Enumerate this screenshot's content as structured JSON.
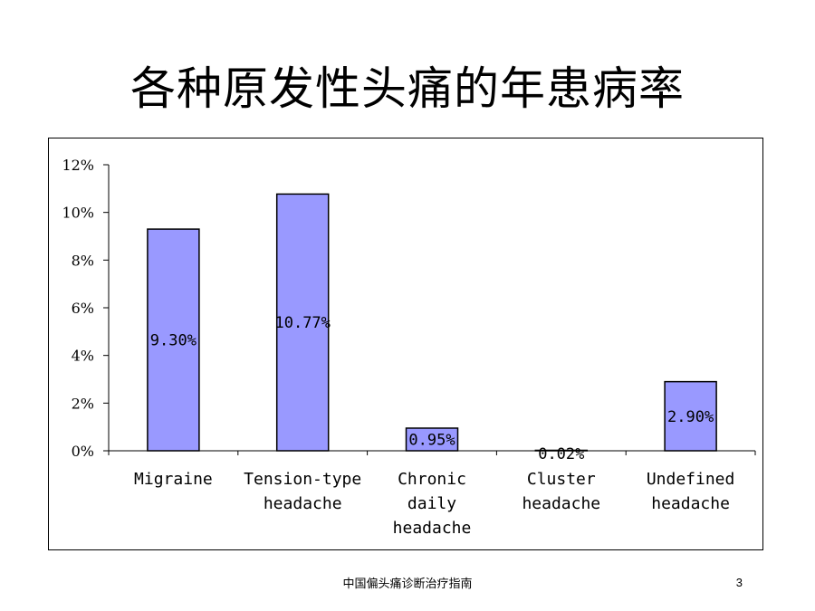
{
  "slide": {
    "title": "各种原发性头痛的年患病率",
    "footer": "中国偏头痛诊断治疗指南",
    "page_number": "3"
  },
  "colors": {
    "bar_fill": "#9999FF",
    "bar_stroke": "#000000",
    "axis": "#000000",
    "text": "#000000"
  },
  "chart_data": {
    "type": "bar",
    "categories": [
      [
        "Migraine"
      ],
      [
        "Tension-type",
        "headache"
      ],
      [
        "Chronic",
        "daily",
        "headache"
      ],
      [
        "Cluster",
        "headache"
      ],
      [
        "Undefined",
        "headache"
      ]
    ],
    "values": [
      9.3,
      10.77,
      0.95,
      0.02,
      2.9
    ],
    "data_labels": [
      "9.30%",
      "10.77%",
      "0.95%",
      "0.02%",
      "2.90%"
    ],
    "y_ticks": [
      "0%",
      "2%",
      "4%",
      "6%",
      "8%",
      "10%",
      "12%"
    ],
    "ylim": [
      0,
      12
    ],
    "y_tick_step": 2,
    "grid": false,
    "legend": "none",
    "title": "",
    "xlabel": "",
    "ylabel": ""
  }
}
